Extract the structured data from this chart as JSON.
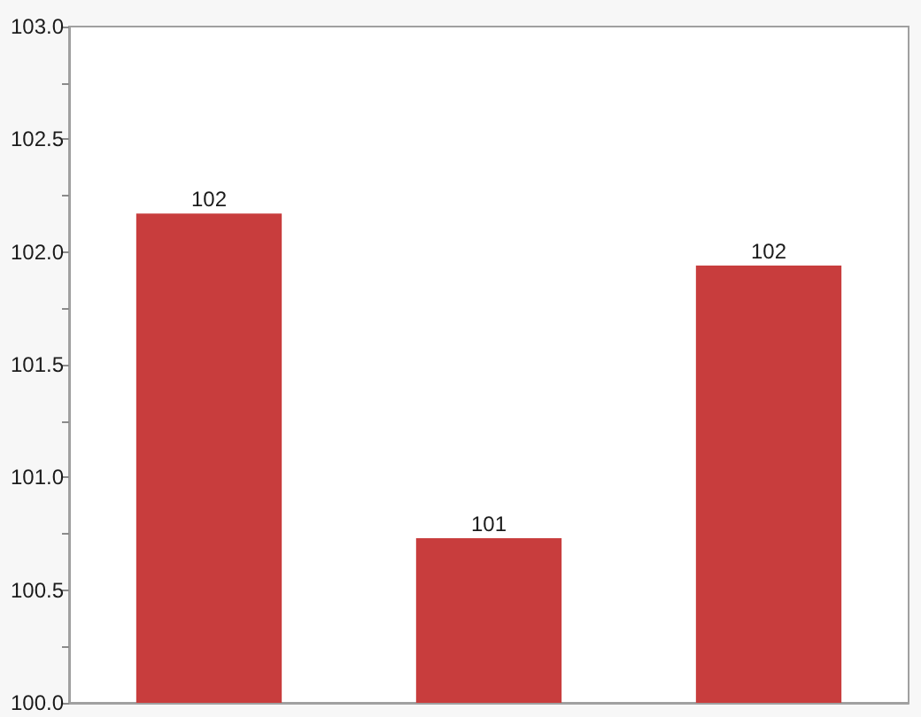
{
  "chart_data": {
    "type": "bar",
    "categories": [
      null,
      null,
      null
    ],
    "values": [
      102.17,
      100.73,
      101.94
    ],
    "color": "#c83d3d",
    "value_labels": [
      "102",
      "101",
      "102"
    ],
    "ylim": [
      100,
      103
    ],
    "yticks": [
      {
        "value": 100,
        "label": "100.0"
      },
      {
        "value": 100.25,
        "label": null
      },
      100.5,
      {
        "value": 100.75,
        "label": null
      },
      {
        "value": 101,
        "label": "101.0"
      },
      {
        "value": 101.25,
        "label": null
      },
      101.5,
      {
        "value": 101.75,
        "label": null
      },
      {
        "value": 102,
        "label": "102.0"
      },
      {
        "value": 102.25,
        "label": null
      },
      102.5,
      {
        "value": 102.75,
        "label": null
      },
      {
        "value": 103,
        "label": "103.0"
      }
    ],
    "tick_labels": "y",
    "grid": false
  }
}
